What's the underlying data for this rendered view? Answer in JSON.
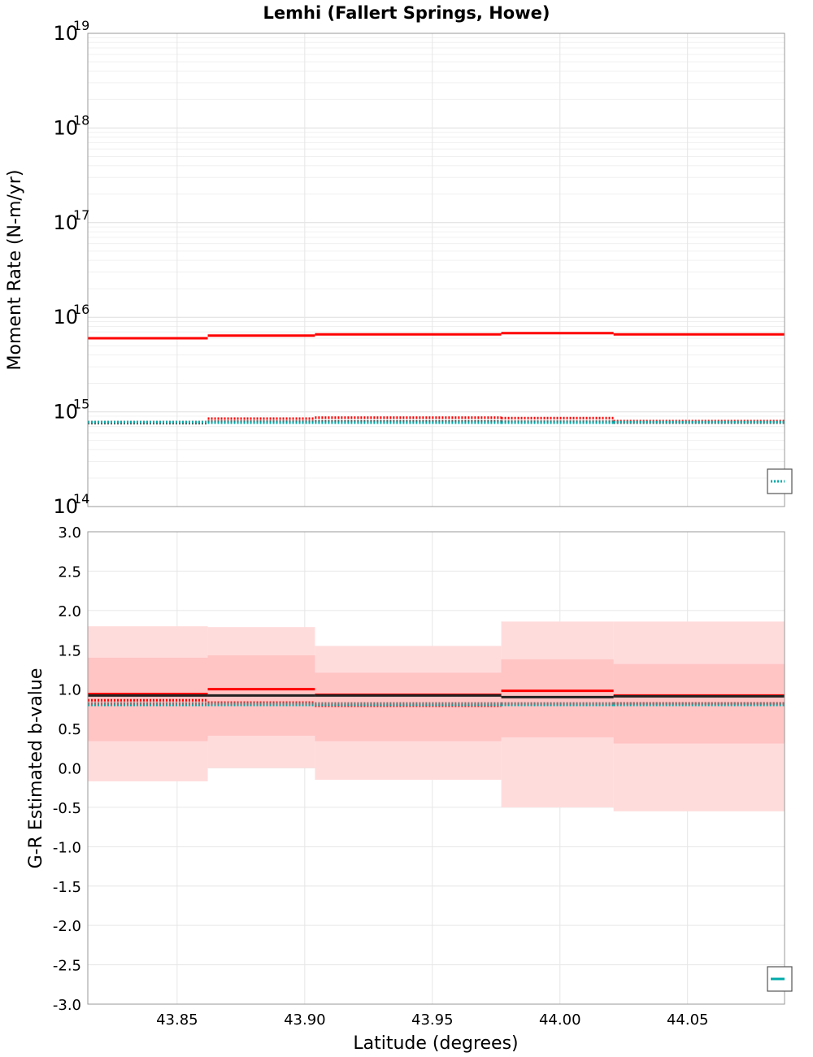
{
  "chart_data": [
    {
      "type": "line",
      "panel": "top",
      "title": "Lemhi (Fallert Springs, Howe)",
      "xlabel": "",
      "ylabel": "Moment Rate (N-m/yr)",
      "yscale": "log",
      "xlim": [
        43.815,
        44.088
      ],
      "ylim": [
        100000000000000.0,
        1e+19
      ],
      "ytick_base": "10",
      "ytick_exponents": [
        "14",
        "15",
        "16",
        "17",
        "18",
        "19"
      ],
      "grid": true,
      "segments_x": [
        43.815,
        43.862,
        43.904,
        43.977,
        44.021,
        44.088
      ],
      "series": [
        {
          "color": "#ff0000",
          "style": "solid",
          "values": [
            6000000000000000.0,
            6400000000000000.0,
            6600000000000000.0,
            6800000000000000.0,
            6600000000000000.0
          ]
        },
        {
          "color": "#ff0000",
          "style": "dotted",
          "values": [
            780000000000000.0,
            850000000000000.0,
            870000000000000.0,
            860000000000000.0,
            800000000000000.0
          ]
        },
        {
          "color": "#555555",
          "style": "dotted",
          "values": [
            760000000000000.0,
            790000000000000.0,
            800000000000000.0,
            790000000000000.0,
            770000000000000.0
          ]
        },
        {
          "color": "#00aaaa",
          "style": "dotted",
          "values": [
            780000000000000.0,
            770000000000000.0,
            770000000000000.0,
            770000000000000.0,
            780000000000000.0
          ]
        }
      ],
      "legend_position": "bottom-right"
    },
    {
      "type": "line",
      "panel": "bottom",
      "xlabel": "Latitude (degrees)",
      "ylabel": "G-R Estimated b-value",
      "xlim": [
        43.815,
        44.088
      ],
      "ylim": [
        -3.0,
        3.0
      ],
      "xticks": [
        "43.85",
        "43.90",
        "43.95",
        "44.00",
        "44.05"
      ],
      "yticks": [
        "3.0",
        "2.5",
        "2.0",
        "1.5",
        "1.0",
        "0.5",
        "0.0",
        "-0.5",
        "-1.0",
        "-1.5",
        "-2.0",
        "-2.5",
        "-3.0"
      ],
      "grid": true,
      "segments_x": [
        43.815,
        43.862,
        43.904,
        43.977,
        44.021,
        44.088
      ],
      "bands": [
        {
          "color": "#ffdcdc",
          "lower": [
            -0.17,
            0.0,
            -0.15,
            -0.5,
            -0.55
          ],
          "upper": [
            1.8,
            1.79,
            1.55,
            1.86,
            1.86
          ]
        },
        {
          "color": "#ffc4c4",
          "lower": [
            0.34,
            0.41,
            0.34,
            0.39,
            0.31
          ],
          "upper": [
            1.4,
            1.43,
            1.21,
            1.38,
            1.32
          ]
        }
      ],
      "series": [
        {
          "color": "#ff0000",
          "style": "solid",
          "values": [
            0.94,
            1.0,
            0.93,
            0.98,
            0.92
          ]
        },
        {
          "color": "#222222",
          "style": "solid",
          "values": [
            0.92,
            0.92,
            0.92,
            0.9,
            0.91
          ]
        },
        {
          "color": "#ff0000",
          "style": "dotted",
          "values": [
            0.86,
            0.83,
            0.79,
            0.81,
            0.82
          ]
        },
        {
          "color": "#00aaaa",
          "style": "dotted",
          "values": [
            0.8,
            0.8,
            0.8,
            0.8,
            0.8
          ]
        },
        {
          "color": "#777777",
          "style": "dotted",
          "values": [
            0.82,
            0.82,
            0.82,
            0.82,
            0.82
          ]
        }
      ],
      "legend_position": "bottom-right"
    }
  ]
}
